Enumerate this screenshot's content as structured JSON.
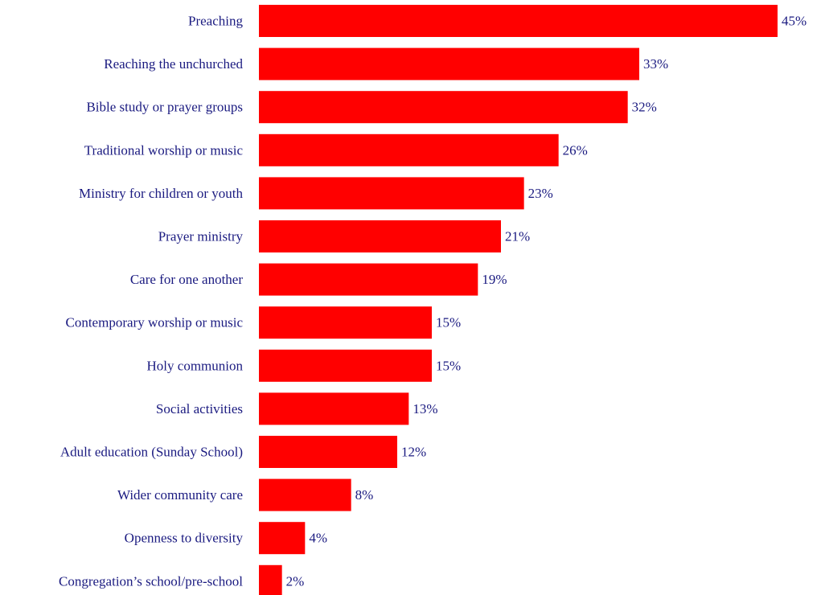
{
  "chart_data": {
    "type": "bar",
    "orientation": "horizontal",
    "categories": [
      "Preaching",
      "Reaching the unchurched",
      "Bible study or prayer groups",
      "Traditional worship or music",
      "Ministry for children or youth",
      "Prayer ministry",
      "Care for one another",
      "Contemporary worship or music",
      "Holy communion",
      "Social activities",
      "Adult education (Sunday School)",
      "Wider community care",
      "Openness to diversity",
      "Congregation’s school/pre-school"
    ],
    "values": [
      45,
      33,
      32,
      26,
      23,
      21,
      19,
      15,
      15,
      13,
      12,
      8,
      4,
      2
    ],
    "value_labels": [
      "45%",
      "33%",
      "32%",
      "26%",
      "23%",
      "21%",
      "19%",
      "15%",
      "15%",
      "13%",
      "12%",
      "8%",
      "4%",
      "2%"
    ],
    "xlim": [
      0,
      45
    ],
    "grid": false,
    "legend": "none",
    "colors": {
      "bar": "#ff0000",
      "text": "#1a1a80"
    }
  }
}
